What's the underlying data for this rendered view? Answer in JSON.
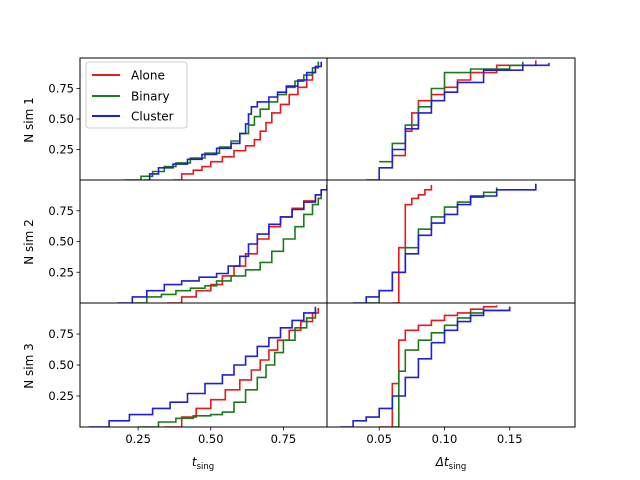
{
  "chart_data": {
    "type": "line",
    "layout": "3x2 grid of empirical CDF panels",
    "colors": {
      "Alone": "#e41a1c",
      "Binary": "#1b7a1b",
      "Cluster": "#1f1fd6"
    },
    "legend": {
      "entries": [
        "Alone",
        "Binary",
        "Cluster"
      ],
      "placement": "top-left of first panel"
    },
    "rows": [
      {
        "label": "N sim 1"
      },
      {
        "label": "N sim 2"
      },
      {
        "label": "N sim 3"
      }
    ],
    "columns": [
      {
        "xlabel": "t_sing",
        "xlabel_main": "t",
        "xlabel_sub": "sing",
        "xlim": [
          0.05,
          0.9
        ],
        "xticks": [
          0.25,
          0.5,
          0.75
        ],
        "xticklabels": [
          "0.25",
          "0.50",
          "0.75"
        ]
      },
      {
        "xlabel": "Δt_sing",
        "xlabel_main": "Δt",
        "xlabel_sub": "sing",
        "xlim": [
          0.01,
          0.2
        ],
        "xticks": [
          0.05,
          0.1,
          0.15
        ],
        "xticklabels": [
          "0.05",
          "0.10",
          "0.15"
        ]
      }
    ],
    "ylim": [
      0.0,
      1.0
    ],
    "yticks": [
      0.25,
      0.5,
      0.75
    ],
    "yticklabels": [
      "0.25",
      "0.50",
      "0.75"
    ],
    "panels": [
      {
        "row": 0,
        "col": 0,
        "series": [
          {
            "name": "Alone",
            "x": [
              0.37,
              0.4,
              0.44,
              0.47,
              0.5,
              0.54,
              0.58,
              0.62,
              0.65,
              0.67,
              0.69,
              0.71,
              0.74,
              0.77,
              0.8,
              0.83,
              0.85,
              0.86,
              0.87
            ],
            "y": [
              0.0,
              0.05,
              0.08,
              0.11,
              0.15,
              0.19,
              0.24,
              0.28,
              0.33,
              0.4,
              0.47,
              0.55,
              0.62,
              0.7,
              0.76,
              0.82,
              0.88,
              0.93,
              0.97
            ]
          },
          {
            "name": "Binary",
            "x": [
              0.2,
              0.26,
              0.3,
              0.34,
              0.38,
              0.43,
              0.48,
              0.53,
              0.57,
              0.6,
              0.63,
              0.65,
              0.67,
              0.7,
              0.73,
              0.76,
              0.79,
              0.82,
              0.85,
              0.87
            ],
            "y": [
              0.0,
              0.03,
              0.07,
              0.11,
              0.14,
              0.18,
              0.22,
              0.27,
              0.32,
              0.38,
              0.45,
              0.52,
              0.58,
              0.64,
              0.7,
              0.76,
              0.81,
              0.86,
              0.92,
              0.97
            ]
          },
          {
            "name": "Cluster",
            "x": [
              0.27,
              0.29,
              0.32,
              0.37,
              0.42,
              0.47,
              0.52,
              0.57,
              0.6,
              0.62,
              0.63,
              0.64,
              0.66,
              0.7,
              0.73,
              0.76,
              0.8,
              0.83,
              0.86,
              0.88
            ],
            "y": [
              0.0,
              0.05,
              0.1,
              0.13,
              0.17,
              0.21,
              0.26,
              0.3,
              0.38,
              0.46,
              0.54,
              0.6,
              0.64,
              0.68,
              0.72,
              0.77,
              0.82,
              0.88,
              0.93,
              0.97
            ]
          }
        ]
      },
      {
        "row": 0,
        "col": 1,
        "series": [
          {
            "name": "Alone",
            "x": [
              0.06,
              0.07,
              0.075,
              0.08,
              0.09,
              0.1,
              0.11,
              0.12,
              0.14,
              0.17
            ],
            "y": [
              0.2,
              0.4,
              0.55,
              0.65,
              0.7,
              0.76,
              0.82,
              0.88,
              0.94,
              0.98
            ]
          },
          {
            "name": "Binary",
            "x": [
              0.05,
              0.06,
              0.07,
              0.08,
              0.09,
              0.1,
              0.12,
              0.15,
              0.16
            ],
            "y": [
              0.15,
              0.3,
              0.45,
              0.6,
              0.75,
              0.88,
              0.91,
              0.94,
              0.97
            ]
          },
          {
            "name": "Cluster",
            "x": [
              0.04,
              0.05,
              0.06,
              0.07,
              0.08,
              0.09,
              0.1,
              0.11,
              0.13,
              0.16,
              0.18
            ],
            "y": [
              0.0,
              0.1,
              0.25,
              0.42,
              0.55,
              0.65,
              0.72,
              0.8,
              0.9,
              0.94,
              0.96
            ]
          }
        ]
      },
      {
        "row": 1,
        "col": 0,
        "series": [
          {
            "name": "Alone",
            "x": [
              0.35,
              0.4,
              0.45,
              0.5,
              0.54,
              0.58,
              0.62,
              0.66,
              0.7,
              0.74,
              0.78,
              0.82,
              0.86,
              0.88
            ],
            "y": [
              0.0,
              0.05,
              0.1,
              0.15,
              0.22,
              0.3,
              0.4,
              0.52,
              0.62,
              0.7,
              0.77,
              0.83,
              0.88,
              0.92
            ]
          },
          {
            "name": "Binary",
            "x": [
              0.23,
              0.28,
              0.33,
              0.38,
              0.43,
              0.48,
              0.52,
              0.57,
              0.62,
              0.67,
              0.71,
              0.75,
              0.79,
              0.82,
              0.85,
              0.87,
              0.88
            ],
            "y": [
              0.0,
              0.05,
              0.07,
              0.1,
              0.12,
              0.14,
              0.18,
              0.22,
              0.27,
              0.33,
              0.42,
              0.52,
              0.62,
              0.72,
              0.8,
              0.85,
              0.88
            ]
          },
          {
            "name": "Cluster",
            "x": [
              0.18,
              0.23,
              0.28,
              0.34,
              0.4,
              0.46,
              0.52,
              0.56,
              0.6,
              0.63,
              0.66,
              0.7,
              0.74,
              0.78,
              0.82,
              0.86,
              0.88,
              0.9
            ],
            "y": [
              0.0,
              0.05,
              0.1,
              0.15,
              0.18,
              0.21,
              0.24,
              0.3,
              0.38,
              0.48,
              0.56,
              0.64,
              0.7,
              0.76,
              0.82,
              0.88,
              0.92,
              0.96
            ]
          }
        ]
      },
      {
        "row": 1,
        "col": 1,
        "series": [
          {
            "name": "Alone",
            "x": [
              0.06,
              0.065,
              0.07,
              0.075,
              0.08,
              0.085,
              0.09
            ],
            "y": [
              0.0,
              0.45,
              0.8,
              0.85,
              0.88,
              0.92,
              0.96
            ]
          },
          {
            "name": "Binary",
            "x": [
              0.04,
              0.05,
              0.06,
              0.07,
              0.08,
              0.09,
              0.1,
              0.11,
              0.12,
              0.13,
              0.14
            ],
            "y": [
              0.0,
              0.1,
              0.25,
              0.45,
              0.6,
              0.7,
              0.78,
              0.82,
              0.86,
              0.9,
              0.94
            ]
          },
          {
            "name": "Cluster",
            "x": [
              0.03,
              0.04,
              0.05,
              0.06,
              0.07,
              0.08,
              0.09,
              0.1,
              0.11,
              0.12,
              0.14,
              0.17
            ],
            "y": [
              0.0,
              0.05,
              0.1,
              0.25,
              0.4,
              0.55,
              0.65,
              0.72,
              0.8,
              0.87,
              0.92,
              0.97
            ]
          }
        ]
      },
      {
        "row": 2,
        "col": 0,
        "series": [
          {
            "name": "Alone",
            "x": [
              0.34,
              0.4,
              0.45,
              0.5,
              0.55,
              0.6,
              0.64,
              0.67,
              0.7,
              0.73,
              0.77,
              0.81,
              0.85,
              0.87
            ],
            "y": [
              0.0,
              0.08,
              0.15,
              0.22,
              0.3,
              0.38,
              0.46,
              0.54,
              0.62,
              0.7,
              0.78,
              0.85,
              0.92,
              0.96
            ]
          },
          {
            "name": "Binary",
            "x": [
              0.25,
              0.32,
              0.38,
              0.44,
              0.5,
              0.54,
              0.58,
              0.62,
              0.66,
              0.69,
              0.72,
              0.75,
              0.79,
              0.83,
              0.86
            ],
            "y": [
              0.0,
              0.04,
              0.07,
              0.09,
              0.1,
              0.12,
              0.2,
              0.3,
              0.4,
              0.5,
              0.6,
              0.7,
              0.8,
              0.88,
              0.95
            ]
          },
          {
            "name": "Cluster",
            "x": [
              0.08,
              0.15,
              0.22,
              0.3,
              0.36,
              0.42,
              0.48,
              0.54,
              0.58,
              0.62,
              0.66,
              0.7,
              0.74,
              0.78,
              0.82,
              0.86
            ],
            "y": [
              0.0,
              0.05,
              0.1,
              0.15,
              0.2,
              0.27,
              0.35,
              0.42,
              0.5,
              0.57,
              0.65,
              0.72,
              0.8,
              0.86,
              0.92,
              0.97
            ]
          }
        ]
      },
      {
        "row": 2,
        "col": 1,
        "series": [
          {
            "name": "Alone",
            "x": [
              0.05,
              0.06,
              0.065,
              0.07,
              0.08,
              0.09,
              0.1,
              0.11,
              0.12,
              0.13,
              0.14
            ],
            "y": [
              0.0,
              0.35,
              0.7,
              0.78,
              0.82,
              0.86,
              0.9,
              0.92,
              0.95,
              0.97,
              0.98
            ]
          },
          {
            "name": "Binary",
            "x": [
              0.06,
              0.065,
              0.07,
              0.08,
              0.09,
              0.1,
              0.11,
              0.12,
              0.13,
              0.15
            ],
            "y": [
              0.0,
              0.45,
              0.62,
              0.7,
              0.76,
              0.82,
              0.88,
              0.92,
              0.94,
              0.97
            ]
          },
          {
            "name": "Cluster",
            "x": [
              0.02,
              0.03,
              0.04,
              0.05,
              0.06,
              0.07,
              0.08,
              0.09,
              0.1,
              0.11,
              0.12,
              0.13,
              0.15
            ],
            "y": [
              0.0,
              0.05,
              0.08,
              0.15,
              0.25,
              0.4,
              0.55,
              0.68,
              0.78,
              0.85,
              0.9,
              0.94,
              0.97
            ]
          }
        ]
      }
    ]
  }
}
